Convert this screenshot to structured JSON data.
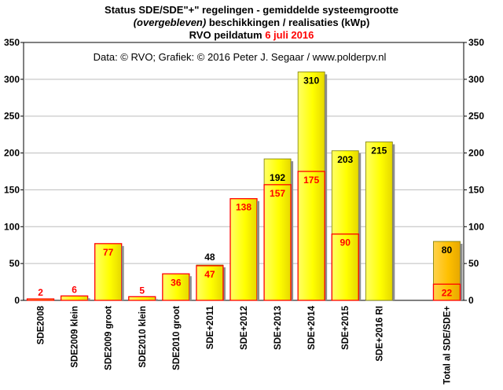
{
  "chart_data": {
    "type": "bar",
    "title_prefix": "Status SDE/SDE\"+\"  regelingen - gemiddelde systeemgrootte",
    "subtitle_italic": "(overgebleven)",
    "subtitle_rest": " beschikkingen  / realisaties (kWp)",
    "date_prefix": "RVO peildatum ",
    "date_value": "6 juli 2016",
    "credit": "Data: © RVO;  Grafiek:  © 2016 Peter J. Segaar / www.polderpv.nl",
    "ylim": [
      0,
      350
    ],
    "yticks": [
      "0",
      "50",
      "100",
      "150",
      "200",
      "250",
      "300",
      "350"
    ],
    "grid": true,
    "colors": {
      "beschikking_fill": "#ffff00",
      "total_fill": "#ffc000",
      "realisatie_edge": "#ff0000",
      "realisatie_label": "#ff0000",
      "beschikking_label": "#000000"
    },
    "categories": [
      "SDE2008",
      "SDE2009 klein",
      "SDE2009 groot",
      "SDE2010 klein",
      "SDE2010 groot",
      "SDE+2011",
      "SDE+2012",
      "SDE+2013",
      "SDE+2014",
      "SDE+2015",
      "SDE+2016 RI",
      "",
      "Total al SDE/SDE+"
    ],
    "series": [
      {
        "values": [
          null,
          null,
          null,
          null,
          null,
          48,
          null,
          192,
          310,
          203,
          215,
          null,
          80
        ]
      },
      {
        "values": [
          2,
          6,
          77,
          5,
          36,
          47,
          138,
          157,
          175,
          90,
          null,
          null,
          22
        ]
      }
    ]
  }
}
